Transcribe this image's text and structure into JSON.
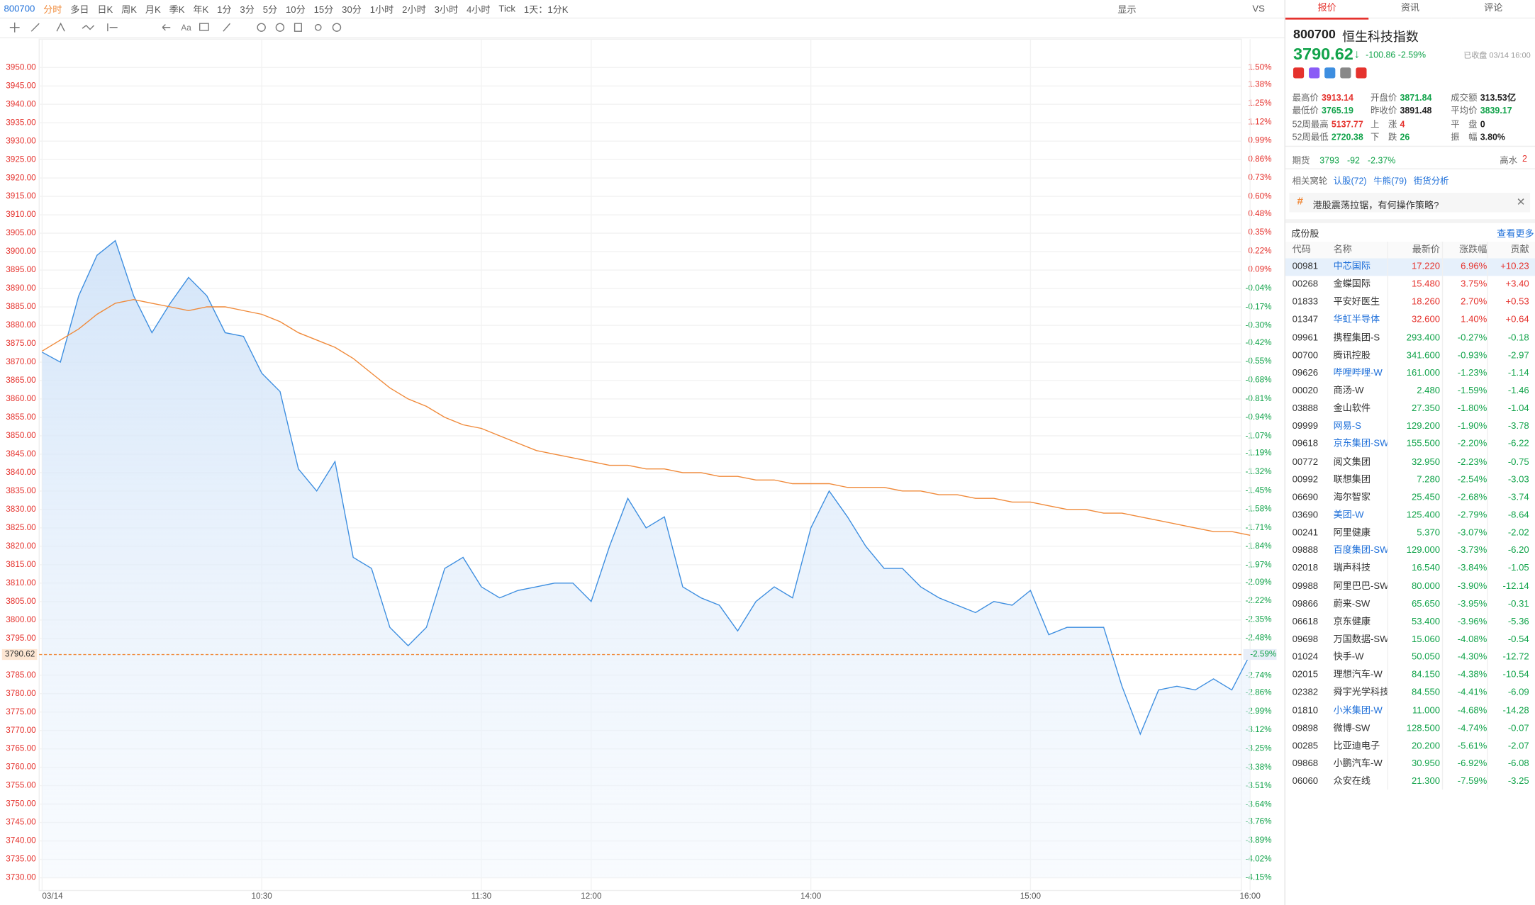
{
  "toolbar": {
    "symbol": "800700",
    "periods": [
      "分时",
      "多日",
      "日K",
      "周K",
      "月K",
      "季K",
      "年K",
      "1分",
      "3分",
      "5分",
      "10分",
      "15分",
      "30分",
      "1小时",
      "2小时",
      "3小时",
      "4小时",
      "Tick",
      "1天：1分K"
    ],
    "display": "显示",
    "vs": "VS"
  },
  "chart_data": {
    "type": "line",
    "x": [
      0,
      5,
      10,
      15,
      20,
      25,
      30,
      35,
      40,
      45,
      50,
      55,
      60,
      65,
      70,
      75,
      80,
      85,
      90,
      95,
      100,
      105,
      110,
      115,
      120,
      125,
      130,
      135,
      140,
      145,
      150,
      155,
      160,
      165,
      170,
      175,
      180,
      185,
      190,
      195,
      200,
      205,
      210,
      215,
      220,
      225,
      230,
      235,
      240,
      245,
      250,
      255,
      260,
      265,
      270,
      275,
      280,
      285,
      290,
      295,
      300,
      305,
      310,
      315,
      320,
      325,
      330
    ],
    "series": [
      {
        "color": "#3d8ee0",
        "values": [
          3872.7,
          3870,
          3888,
          3899,
          3903,
          3888,
          3878,
          3886,
          3893,
          3888,
          3878,
          3877,
          3867,
          3862,
          3841,
          3835,
          3843,
          3817,
          3814,
          3798,
          3793,
          3798,
          3814,
          3817,
          3809,
          3806,
          3808,
          3809,
          3810,
          3810,
          3805,
          3820,
          3833,
          3825,
          3828,
          3809,
          3806,
          3804,
          3797,
          3805,
          3809,
          3806,
          3825,
          3835,
          3828,
          3820,
          3814,
          3814,
          3809,
          3806,
          3804,
          3802,
          3805,
          3804,
          3808,
          3796,
          3798,
          3798,
          3798,
          3782,
          3769,
          3781,
          3782,
          3781,
          3784,
          3781,
          3790.62
        ]
      },
      {
        "color": "#f08a3a",
        "values": [
          3873,
          3876,
          3879,
          3883,
          3886,
          3887,
          3886,
          3885,
          3884,
          3885,
          3885,
          3884,
          3883,
          3881,
          3878,
          3876,
          3874,
          3871,
          3867,
          3863,
          3860,
          3858,
          3855,
          3853,
          3852,
          3850,
          3848,
          3846,
          3845,
          3844,
          3843,
          3842,
          3842,
          3841,
          3841,
          3840,
          3840,
          3839,
          3839,
          3838,
          3838,
          3837,
          3837,
          3837,
          3836,
          3836,
          3836,
          3835,
          3835,
          3834,
          3834,
          3833,
          3833,
          3832,
          3832,
          3831,
          3830,
          3830,
          3829,
          3829,
          3828,
          3827,
          3826,
          3825,
          3824,
          3824,
          3823
        ]
      }
    ],
    "xlim": [
      0,
      330
    ],
    "xticks": [
      {
        "value": 0,
        "label": "03/14"
      },
      {
        "value": 60,
        "label": "10:30"
      },
      {
        "value": 120,
        "label": "11:30"
      },
      {
        "value": 150,
        "label": "12:00"
      },
      {
        "value": 210,
        "label": "14:00"
      },
      {
        "value": 270,
        "label": "15:00"
      },
      {
        "value": 330,
        "label": "16:00"
      }
    ],
    "ylim": [
      3730,
      3950
    ],
    "yticks": [
      {
        "value": 3950,
        "label": "3950.00"
      },
      {
        "value": 3945,
        "label": "3945.00"
      },
      {
        "value": 3940,
        "label": "3940.00"
      },
      {
        "value": 3935,
        "label": "3935.00"
      },
      {
        "value": 3930,
        "label": "3930.00"
      },
      {
        "value": 3925,
        "label": "3925.00"
      },
      {
        "value": 3920,
        "label": "3920.00"
      },
      {
        "value": 3915,
        "label": "3915.00"
      },
      {
        "value": 3910,
        "label": "3910.00"
      },
      {
        "value": 3905,
        "label": "3905.00"
      },
      {
        "value": 3900,
        "label": "3900.00"
      },
      {
        "value": 3895,
        "label": "3895.00"
      },
      {
        "value": 3890,
        "label": "3890.00"
      },
      {
        "value": 3885,
        "label": "3885.00"
      },
      {
        "value": 3880,
        "label": "3880.00"
      },
      {
        "value": 3875,
        "label": "3875.00"
      },
      {
        "value": 3870,
        "label": "3870.00"
      },
      {
        "value": 3865,
        "label": "3865.00"
      },
      {
        "value": 3860,
        "label": "3860.00"
      },
      {
        "value": 3855,
        "label": "3855.00"
      },
      {
        "value": 3850,
        "label": "3850.00"
      },
      {
        "value": 3845,
        "label": "3845.00"
      },
      {
        "value": 3840,
        "label": "3840.00"
      },
      {
        "value": 3835,
        "label": "3835.00"
      },
      {
        "value": 3830,
        "label": "3830.00"
      },
      {
        "value": 3825,
        "label": "3825.00"
      },
      {
        "value": 3820,
        "label": "3820.00"
      },
      {
        "value": 3815,
        "label": "3815.00"
      },
      {
        "value": 3810,
        "label": "3810.00"
      },
      {
        "value": 3805,
        "label": "3805.00"
      },
      {
        "value": 3800,
        "label": "3800.00"
      },
      {
        "value": 3795,
        "label": "3795.00"
      },
      {
        "value": 3785,
        "label": "3785.00"
      },
      {
        "value": 3780,
        "label": "3780.00"
      },
      {
        "value": 3775,
        "label": "3775.00"
      },
      {
        "value": 3770,
        "label": "3770.00"
      },
      {
        "value": 3765,
        "label": "3765.00"
      },
      {
        "value": 3760,
        "label": "3760.00"
      },
      {
        "value": 3755,
        "label": "3755.00"
      },
      {
        "value": 3750,
        "label": "3750.00"
      },
      {
        "value": 3745,
        "label": "3745.00"
      },
      {
        "value": 3740,
        "label": "3740.00"
      },
      {
        "value": 3735,
        "label": "3735.00"
      },
      {
        "value": 3730,
        "label": "3730.00"
      }
    ],
    "y2lim": [
      -4.15,
      1.5
    ],
    "y2ticks": [
      {
        "value": 1.5,
        "label": "1.50%"
      },
      {
        "value": 1.38,
        "label": "1.38%"
      },
      {
        "value": 1.25,
        "label": "1.25%"
      },
      {
        "value": 1.12,
        "label": "1.12%"
      },
      {
        "value": 0.99,
        "label": "0.99%"
      },
      {
        "value": 0.86,
        "label": "0.86%"
      },
      {
        "value": 0.73,
        "label": "0.73%"
      },
      {
        "value": 0.6,
        "label": "0.60%"
      },
      {
        "value": 0.48,
        "label": "0.48%"
      },
      {
        "value": 0.35,
        "label": "0.35%"
      },
      {
        "value": 0.22,
        "label": "0.22%"
      },
      {
        "value": 0.09,
        "label": "0.09%"
      },
      {
        "value": -0.04,
        "label": "-0.04%"
      },
      {
        "value": -0.17,
        "label": "-0.17%"
      },
      {
        "value": -0.3,
        "label": "-0.30%"
      },
      {
        "value": -0.42,
        "label": "-0.42%"
      },
      {
        "value": -0.55,
        "label": "-0.55%"
      },
      {
        "value": -0.68,
        "label": "-0.68%"
      },
      {
        "value": -0.81,
        "label": "-0.81%"
      },
      {
        "value": -0.94,
        "label": "-0.94%"
      },
      {
        "value": -1.07,
        "label": "-1.07%"
      },
      {
        "value": -1.19,
        "label": "-1.19%"
      },
      {
        "value": -1.32,
        "label": "-1.32%"
      },
      {
        "value": -1.45,
        "label": "-1.45%"
      },
      {
        "value": -1.58,
        "label": "-1.58%"
      },
      {
        "value": -1.71,
        "label": "-1.71%"
      },
      {
        "value": -1.84,
        "label": "-1.84%"
      },
      {
        "value": -1.97,
        "label": "-1.97%"
      },
      {
        "value": -2.09,
        "label": "-2.09%"
      },
      {
        "value": -2.22,
        "label": "-2.22%"
      },
      {
        "value": -2.35,
        "label": "-2.35%"
      },
      {
        "value": -2.48,
        "label": "-2.48%"
      },
      {
        "value": -2.74,
        "label": "-2.74%"
      },
      {
        "value": -2.86,
        "label": "-2.86%"
      },
      {
        "value": -2.99,
        "label": "-2.99%"
      },
      {
        "value": -3.12,
        "label": "-3.12%"
      },
      {
        "value": -3.25,
        "label": "-3.25%"
      },
      {
        "value": -3.38,
        "label": "-3.38%"
      },
      {
        "value": -3.51,
        "label": "-3.51%"
      },
      {
        "value": -3.64,
        "label": "-3.64%"
      },
      {
        "value": -3.76,
        "label": "-3.76%"
      },
      {
        "value": -3.89,
        "label": "-3.89%"
      },
      {
        "value": -4.02,
        "label": "-4.02%"
      },
      {
        "value": -4.15,
        "label": "-4.15%"
      }
    ],
    "last_price": {
      "value": 3790.62,
      "label": "3790.62"
    },
    "last_pct": {
      "value": -2.59,
      "label": "-2.59%"
    },
    "grid": true
  },
  "panel": {
    "tabs": [
      "报价",
      "资讯",
      "评论"
    ],
    "code": "800700",
    "name": "恒生科技指数",
    "price": "3790.62",
    "change": "-100.86",
    "pct": "-2.59%",
    "status": "已收盘 03/14 16:00",
    "stats": [
      {
        "label": "最高价",
        "value": "3913.14",
        "color": "#e5322d"
      },
      {
        "label": "开盘价",
        "value": "3871.84",
        "color": "#11a34a"
      },
      {
        "label": "成交额",
        "value": "313.53亿",
        "color": "#222"
      },
      {
        "label": "最低价",
        "value": "3765.19",
        "color": "#11a34a"
      },
      {
        "label": "昨收价",
        "value": "3891.48",
        "color": "#222"
      },
      {
        "label": "平均价",
        "value": "3839.17",
        "color": "#11a34a"
      },
      {
        "label": "52周最高",
        "value": "5137.77",
        "color": "#e5322d"
      },
      {
        "label": "上　涨",
        "value": "4",
        "color": "#e5322d"
      },
      {
        "label": "平　盘",
        "value": "0",
        "color": "#222"
      },
      {
        "label": "52周最低",
        "value": "2720.38",
        "color": "#11a34a"
      },
      {
        "label": "下　跌",
        "value": "26",
        "color": "#11a34a"
      },
      {
        "label": "振　幅",
        "value": "3.80%",
        "color": "#222"
      }
    ],
    "futures": {
      "label": "期货",
      "price": "3793",
      "change": "-92",
      "pct": "-2.37%",
      "premium_label": "高水",
      "premium": "2"
    },
    "warrants": {
      "label": "相关窝轮",
      "items": [
        "认股(72)",
        "牛熊(79)",
        "街货分析"
      ]
    },
    "banner": "港股震荡拉锯，有何操作策略?",
    "section": "成份股",
    "more": "查看更多",
    "headers": [
      "代码",
      "名称",
      "最新价",
      "涨跌幅",
      "贡献"
    ],
    "rows": [
      {
        "code": "00981",
        "name": "中芯国际",
        "price": "17.220",
        "pct": "6.96%",
        "contrib": "+10.23",
        "link": true
      },
      {
        "code": "00268",
        "name": "金蝶国际",
        "price": "15.480",
        "pct": "3.75%",
        "contrib": "+3.40",
        "link": false
      },
      {
        "code": "01833",
        "name": "平安好医生",
        "price": "18.260",
        "pct": "2.70%",
        "contrib": "+0.53",
        "link": false
      },
      {
        "code": "01347",
        "name": "华虹半导体",
        "price": "32.600",
        "pct": "1.40%",
        "contrib": "+0.64",
        "link": true
      },
      {
        "code": "09961",
        "name": "携程集团-S",
        "price": "293.400",
        "pct": "-0.27%",
        "contrib": "-0.18",
        "link": false
      },
      {
        "code": "00700",
        "name": "腾讯控股",
        "price": "341.600",
        "pct": "-0.93%",
        "contrib": "-2.97",
        "link": false
      },
      {
        "code": "09626",
        "name": "哔哩哔哩-W",
        "price": "161.000",
        "pct": "-1.23%",
        "contrib": "-1.14",
        "link": true
      },
      {
        "code": "00020",
        "name": "商汤-W",
        "price": "2.480",
        "pct": "-1.59%",
        "contrib": "-1.46",
        "link": false
      },
      {
        "code": "03888",
        "name": "金山软件",
        "price": "27.350",
        "pct": "-1.80%",
        "contrib": "-1.04",
        "link": false
      },
      {
        "code": "09999",
        "name": "网易-S",
        "price": "129.200",
        "pct": "-1.90%",
        "contrib": "-3.78",
        "link": true
      },
      {
        "code": "09618",
        "name": "京东集团-SW",
        "price": "155.500",
        "pct": "-2.20%",
        "contrib": "-6.22",
        "link": true
      },
      {
        "code": "00772",
        "name": "阅文集团",
        "price": "32.950",
        "pct": "-2.23%",
        "contrib": "-0.75",
        "link": false
      },
      {
        "code": "00992",
        "name": "联想集团",
        "price": "7.280",
        "pct": "-2.54%",
        "contrib": "-3.03",
        "link": false
      },
      {
        "code": "06690",
        "name": "海尔智家",
        "price": "25.450",
        "pct": "-2.68%",
        "contrib": "-3.74",
        "link": false
      },
      {
        "code": "03690",
        "name": "美团-W",
        "price": "125.400",
        "pct": "-2.79%",
        "contrib": "-8.64",
        "link": true
      },
      {
        "code": "00241",
        "name": "阿里健康",
        "price": "5.370",
        "pct": "-3.07%",
        "contrib": "-2.02",
        "link": false
      },
      {
        "code": "09888",
        "name": "百度集团-SW",
        "price": "129.000",
        "pct": "-3.73%",
        "contrib": "-6.20",
        "link": true
      },
      {
        "code": "02018",
        "name": "瑞声科技",
        "price": "16.540",
        "pct": "-3.84%",
        "contrib": "-1.05",
        "link": false
      },
      {
        "code": "09988",
        "name": "阿里巴巴-SW",
        "price": "80.000",
        "pct": "-3.90%",
        "contrib": "-12.14",
        "link": false
      },
      {
        "code": "09866",
        "name": "蔚来-SW",
        "price": "65.650",
        "pct": "-3.95%",
        "contrib": "-0.31",
        "link": false
      },
      {
        "code": "06618",
        "name": "京东健康",
        "price": "53.400",
        "pct": "-3.96%",
        "contrib": "-5.36",
        "link": false
      },
      {
        "code": "09698",
        "name": "万国数据-SW",
        "price": "15.060",
        "pct": "-4.08%",
        "contrib": "-0.54",
        "link": false
      },
      {
        "code": "01024",
        "name": "快手-W",
        "price": "50.050",
        "pct": "-4.30%",
        "contrib": "-12.72",
        "link": false
      },
      {
        "code": "02015",
        "name": "理想汽车-W",
        "price": "84.150",
        "pct": "-4.38%",
        "contrib": "-10.54",
        "link": false
      },
      {
        "code": "02382",
        "name": "舜宇光学科技",
        "price": "84.550",
        "pct": "-4.41%",
        "contrib": "-6.09",
        "link": false
      },
      {
        "code": "01810",
        "name": "小米集团-W",
        "price": "11.000",
        "pct": "-4.68%",
        "contrib": "-14.28",
        "link": true
      },
      {
        "code": "09898",
        "name": "微博-SW",
        "price": "128.500",
        "pct": "-4.74%",
        "contrib": "-0.07",
        "link": false
      },
      {
        "code": "00285",
        "name": "比亚迪电子",
        "price": "20.200",
        "pct": "-5.61%",
        "contrib": "-2.07",
        "link": false
      },
      {
        "code": "09868",
        "name": "小鹏汽车-W",
        "price": "30.950",
        "pct": "-6.92%",
        "contrib": "-6.08",
        "link": false
      },
      {
        "code": "06060",
        "name": "众安在线",
        "price": "21.300",
        "pct": "-7.59%",
        "contrib": "-3.25",
        "link": false
      }
    ]
  }
}
